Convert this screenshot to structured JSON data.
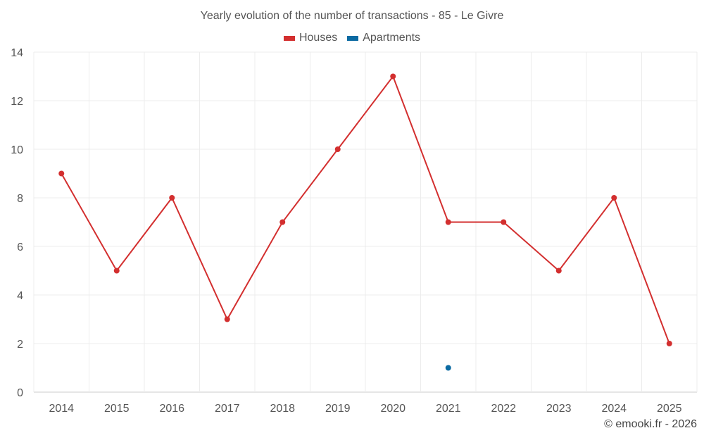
{
  "chart_data": {
    "type": "line",
    "title": "Yearly evolution of the number of transactions - 85 - Le Givre",
    "categories": [
      "2014",
      "2015",
      "2016",
      "2017",
      "2018",
      "2019",
      "2020",
      "2021",
      "2022",
      "2023",
      "2024",
      "2025"
    ],
    "series": [
      {
        "name": "Houses",
        "color": "#d32f2f",
        "values": [
          9,
          5,
          8,
          3,
          7,
          10,
          13,
          7,
          7,
          5,
          8,
          2
        ]
      },
      {
        "name": "Apartments",
        "color": "#0b6aa2",
        "values": [
          null,
          null,
          null,
          null,
          null,
          null,
          null,
          1,
          null,
          null,
          null,
          null
        ]
      }
    ],
    "ylim": [
      0,
      14
    ],
    "yticks": [
      0,
      2,
      4,
      6,
      8,
      10,
      12,
      14
    ],
    "xlabel": "",
    "ylabel": "",
    "grid": true,
    "legend": "top-center"
  },
  "credit": "© emooki.fr - 2026"
}
